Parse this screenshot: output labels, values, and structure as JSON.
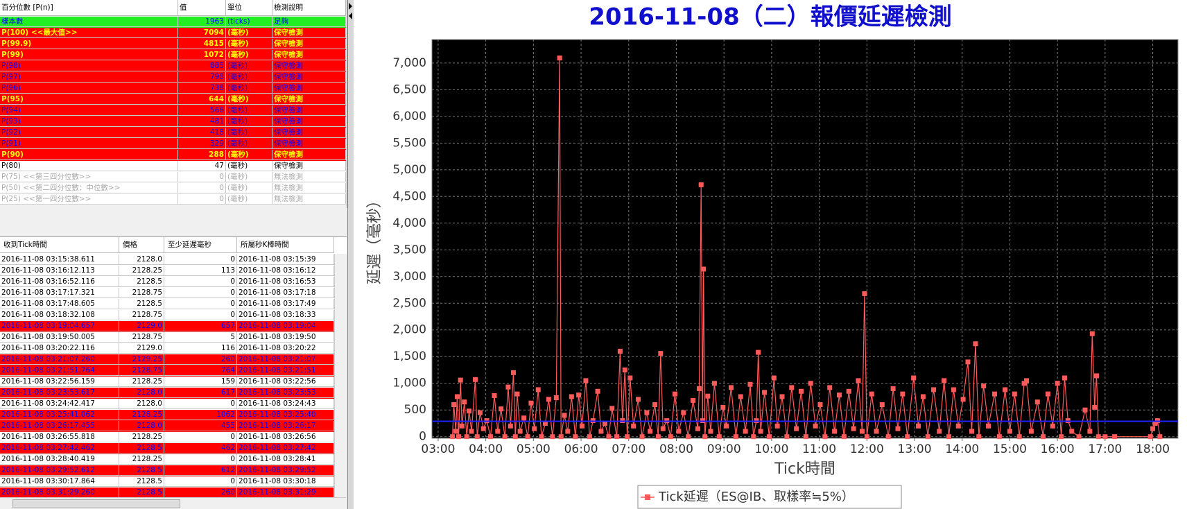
{
  "percentile_table": {
    "headers": [
      "百分位數 [P(n)]",
      "值",
      "單位",
      "檢測說明"
    ],
    "rows": [
      {
        "cells": [
          "樣本數",
          "1963",
          "(ticks)",
          "足夠"
        ],
        "bg": "#22ee22",
        "color": "#0000ff"
      },
      {
        "cells": [
          "P(100)  <<最大值>>",
          "7094",
          "(毫秒)",
          "保守檢測"
        ],
        "bg": "#ff0000",
        "color": "#ffff00"
      },
      {
        "cells": [
          "P(99.9)",
          "4815",
          "(毫秒)",
          "保守檢測"
        ],
        "bg": "#ff0000",
        "color": "#ffff00"
      },
      {
        "cells": [
          "P(99)",
          "1072",
          "(毫秒)",
          "保守檢測"
        ],
        "bg": "#ff0000",
        "color": "#ffff00"
      },
      {
        "cells": [
          "P(98)",
          "885",
          "(毫秒)",
          "保守檢測"
        ],
        "bg": "#ff0000",
        "color": "#0000ff"
      },
      {
        "cells": [
          "P(97)",
          "798",
          "(毫秒)",
          "保守檢測"
        ],
        "bg": "#ff0000",
        "color": "#0000ff"
      },
      {
        "cells": [
          "P(96)",
          "738",
          "(毫秒)",
          "保守檢測"
        ],
        "bg": "#ff0000",
        "color": "#0000ff"
      },
      {
        "cells": [
          "P(95)",
          "644",
          "(毫秒)",
          "保守檢測"
        ],
        "bg": "#ff0000",
        "color": "#ffff00"
      },
      {
        "cells": [
          "P(94)",
          "566",
          "(毫秒)",
          "保守檢測"
        ],
        "bg": "#ff0000",
        "color": "#0000ff"
      },
      {
        "cells": [
          "P(93)",
          "481",
          "(毫秒)",
          "保守檢測"
        ],
        "bg": "#ff0000",
        "color": "#0000ff"
      },
      {
        "cells": [
          "P(92)",
          "418",
          "(毫秒)",
          "保守檢測"
        ],
        "bg": "#ff0000",
        "color": "#0000ff"
      },
      {
        "cells": [
          "P(91)",
          "329",
          "(毫秒)",
          "保守檢測"
        ],
        "bg": "#ff0000",
        "color": "#0000ff"
      },
      {
        "cells": [
          "P(90)",
          "288",
          "(毫秒)",
          "保守檢測"
        ],
        "bg": "#ff0000",
        "color": "#ffff00"
      },
      {
        "cells": [
          "P(80)",
          "47",
          "(毫秒)",
          "保守檢測"
        ],
        "bg": "#ffffff",
        "color": "#000000"
      },
      {
        "cells": [
          "P(75)  <<第三四分位數>>",
          "0",
          "(毫秒)",
          "無法檢測"
        ],
        "bg": "#ffffff",
        "color": "#aaaaaa"
      },
      {
        "cells": [
          "P(50)  <<第二四分位數：中位數>>",
          "0",
          "(毫秒)",
          "無法檢測"
        ],
        "bg": "#ffffff",
        "color": "#aaaaaa"
      },
      {
        "cells": [
          "P(25)  <<第一四分位數>>",
          "0",
          "(毫秒)",
          "無法檢測"
        ],
        "bg": "#ffffff",
        "color": "#aaaaaa"
      }
    ]
  },
  "tick_table": {
    "headers": [
      "收到Tick時間",
      "價格",
      "至少延遲毫秒",
      "所屬秒K棒時間"
    ],
    "rows": [
      {
        "cells": [
          "2016-11-08 03:15:38.611",
          "2128.0",
          "0",
          "2016-11-08 03:15:39"
        ],
        "bg": "#ffffff"
      },
      {
        "cells": [
          "2016-11-08 03:16:12.113",
          "2128.25",
          "113",
          "2016-11-08 03:16:12"
        ],
        "bg": "#ffffff"
      },
      {
        "cells": [
          "2016-11-08 03:16:52.116",
          "2128.5",
          "0",
          "2016-11-08 03:16:53"
        ],
        "bg": "#ffffff"
      },
      {
        "cells": [
          "2016-11-08 03:17:17.321",
          "2128.75",
          "0",
          "2016-11-08 03:17:18"
        ],
        "bg": "#ffffff"
      },
      {
        "cells": [
          "2016-11-08 03:17:48.605",
          "2128.5",
          "0",
          "2016-11-08 03:17:49"
        ],
        "bg": "#ffffff"
      },
      {
        "cells": [
          "2016-11-08 03:18:32.108",
          "2128.75",
          "0",
          "2016-11-08 03:18:33"
        ],
        "bg": "#ffffff"
      },
      {
        "cells": [
          "2016-11-08 03:19:04.657",
          "2129.0",
          "657",
          "2016-11-08 03:19:04"
        ],
        "bg": "#ff0000"
      },
      {
        "cells": [
          "2016-11-08 03:19:50.005",
          "2128.75",
          "5",
          "2016-11-08 03:19:50"
        ],
        "bg": "#ffffff"
      },
      {
        "cells": [
          "2016-11-08 03:20:22.116",
          "2129.0",
          "116",
          "2016-11-08 03:20:22"
        ],
        "bg": "#ffffff"
      },
      {
        "cells": [
          "2016-11-08 03:21:07.260",
          "2129.25",
          "260",
          "2016-11-08 03:21:07"
        ],
        "bg": "#ff0000"
      },
      {
        "cells": [
          "2016-11-08 03:21:51.764",
          "2128.75",
          "764",
          "2016-11-08 03:21:51"
        ],
        "bg": "#ff0000"
      },
      {
        "cells": [
          "2016-11-08 03:22:56.159",
          "2128.25",
          "159",
          "2016-11-08 03:22:56"
        ],
        "bg": "#ffffff"
      },
      {
        "cells": [
          "2016-11-08 03:23:53.617",
          "2128.0",
          "617",
          "2016-11-08 03:23:53"
        ],
        "bg": "#ff0000"
      },
      {
        "cells": [
          "2016-11-08 03:24:42.417",
          "2128.0",
          "0",
          "2016-11-08 03:24:43"
        ],
        "bg": "#ffffff"
      },
      {
        "cells": [
          "2016-11-08 03:25:41.062",
          "2128.25",
          "1062",
          "2016-11-08 03:25:40"
        ],
        "bg": "#ff0000"
      },
      {
        "cells": [
          "2016-11-08 03:26:17.455",
          "2128.0",
          "455",
          "2016-11-08 03:26:17"
        ],
        "bg": "#ff0000"
      },
      {
        "cells": [
          "2016-11-08 03:26:55.818",
          "2128.25",
          "0",
          "2016-11-08 03:26:56"
        ],
        "bg": "#ffffff"
      },
      {
        "cells": [
          "2016-11-08 03:27:42.462",
          "2128.5",
          "462",
          "2016-11-08 03:27:42"
        ],
        "bg": "#ff0000"
      },
      {
        "cells": [
          "2016-11-08 03:28:40.419",
          "2128.25",
          "0",
          "2016-11-08 03:28:41"
        ],
        "bg": "#ffffff"
      },
      {
        "cells": [
          "2016-11-08 03:29:52.612",
          "2128.5",
          "612",
          "2016-11-08 03:29:52"
        ],
        "bg": "#ff0000"
      },
      {
        "cells": [
          "2016-11-08 03:30:17.864",
          "2128.5",
          "0",
          "2016-11-08 03:30:18"
        ],
        "bg": "#ffffff"
      },
      {
        "cells": [
          "2016-11-08 03:31:29.260",
          "2128.5",
          "260",
          "2016-11-08 03:31:29"
        ],
        "bg": "#ff0000"
      }
    ]
  },
  "chart_data": {
    "type": "line",
    "title": "2016-11-08（二）報價延遲檢測",
    "ylabel": "延遲（毫秒）",
    "xlabel": "Tick時間",
    "xlim": [
      2.87,
      18.53
    ],
    "ylim": [
      -30,
      7440
    ],
    "grid": true,
    "background": "#000000",
    "reference_line": {
      "value": 288,
      "color": "#2020ff"
    },
    "xticks": [
      {
        "value": 3,
        "label": "03:00"
      },
      {
        "value": 4,
        "label": "04:00"
      },
      {
        "value": 5,
        "label": "05:00"
      },
      {
        "value": 6,
        "label": "06:00"
      },
      {
        "value": 7,
        "label": "07:00"
      },
      {
        "value": 8,
        "label": "08:00"
      },
      {
        "value": 9,
        "label": "09:00"
      },
      {
        "value": 10,
        "label": "10:00"
      },
      {
        "value": 11,
        "label": "11:00"
      },
      {
        "value": 12,
        "label": "12:00"
      },
      {
        "value": 13,
        "label": "13:00"
      },
      {
        "value": 14,
        "label": "14:00"
      },
      {
        "value": 15,
        "label": "15:00"
      },
      {
        "value": 16,
        "label": "16:00"
      },
      {
        "value": 17,
        "label": "17:00"
      },
      {
        "value": 18,
        "label": "18:00"
      }
    ],
    "yticks": [
      0,
      500,
      {
        "value": 1000,
        "label": "1,000"
      },
      {
        "value": 1500,
        "label": "1,500"
      },
      {
        "value": 2000,
        "label": "2,000"
      },
      {
        "value": 2500,
        "label": "2,500"
      },
      {
        "value": 3000,
        "label": "3,000"
      },
      {
        "value": 3500,
        "label": "3,500"
      },
      {
        "value": 4000,
        "label": "4,000"
      },
      {
        "value": 4500,
        "label": "4,500"
      },
      {
        "value": 5000,
        "label": "5,000"
      },
      {
        "value": 5500,
        "label": "5,500"
      },
      {
        "value": 6000,
        "label": "6,000"
      },
      {
        "value": 6500,
        "label": "6,500"
      },
      {
        "value": 7000,
        "label": "7,000"
      }
    ],
    "x": [
      3.3,
      3.33,
      3.37,
      3.4,
      3.43,
      3.47,
      3.5,
      3.55,
      3.6,
      3.65,
      3.7,
      3.78,
      3.82,
      3.88,
      3.95,
      4.02,
      4.1,
      4.18,
      4.25,
      4.32,
      4.4,
      4.47,
      4.52,
      4.58,
      4.62,
      4.66,
      4.72,
      4.8,
      4.88,
      4.95,
      5.02,
      5.1,
      5.17,
      5.25,
      5.32,
      5.4,
      5.48,
      5.55,
      5.58,
      5.65,
      5.72,
      5.8,
      5.88,
      5.95,
      6.02,
      6.1,
      6.18,
      6.25,
      6.35,
      6.42,
      6.5,
      6.58,
      6.65,
      6.75,
      6.82,
      6.87,
      6.92,
      6.97,
      7.03,
      7.1,
      7.2,
      7.28,
      7.38,
      7.45,
      7.55,
      7.62,
      7.67,
      7.72,
      7.8,
      7.88,
      7.97,
      8.05,
      8.15,
      8.25,
      8.35,
      8.45,
      8.48,
      8.52,
      8.55,
      8.57,
      8.6,
      8.66,
      8.72,
      8.8,
      8.9,
      8.98,
      9.05,
      9.15,
      9.25,
      9.35,
      9.45,
      9.55,
      9.62,
      9.68,
      9.72,
      9.77,
      9.85,
      9.95,
      10.05,
      10.12,
      10.22,
      10.32,
      10.42,
      10.52,
      10.62,
      10.72,
      10.82,
      10.92,
      11.02,
      11.12,
      11.22,
      11.32,
      11.42,
      11.52,
      11.62,
      11.72,
      11.82,
      11.9,
      11.95,
      12.0,
      12.1,
      12.2,
      12.32,
      12.45,
      12.55,
      12.65,
      12.75,
      12.85,
      12.98,
      13.08,
      13.18,
      13.28,
      13.4,
      13.52,
      13.62,
      13.72,
      13.82,
      13.92,
      14.02,
      14.12,
      14.2,
      14.28,
      14.35,
      14.45,
      14.55,
      14.68,
      14.78,
      14.9,
      15.0,
      15.1,
      15.2,
      15.3,
      15.35,
      15.45,
      15.58,
      15.7,
      15.8,
      15.9,
      16.0,
      16.08,
      16.15,
      16.22,
      16.3,
      16.45,
      16.58,
      16.68,
      16.73,
      16.78,
      16.82,
      16.86,
      17.0,
      17.2,
      17.95,
      18.0,
      18.05,
      18.1,
      18.15
    ],
    "series": [
      {
        "name": "Tick延遲（ES@IB、取樣率≒5%）",
        "color": "#ff5a5a",
        "values": [
          0,
          600,
          100,
          750,
          0,
          1060,
          200,
          650,
          0,
          480,
          100,
          1070,
          0,
          450,
          150,
          300,
          0,
          770,
          100,
          520,
          0,
          930,
          200,
          1200,
          0,
          800,
          100,
          350,
          0,
          630,
          150,
          880,
          0,
          250,
          700,
          0,
          730,
          7094,
          0,
          400,
          100,
          750,
          0,
          780,
          200,
          1050,
          0,
          300,
          850,
          100,
          250,
          0,
          530,
          0,
          1600,
          300,
          1250,
          0,
          1100,
          200,
          700,
          0,
          450,
          100,
          600,
          0,
          1560,
          150,
          300,
          0,
          800,
          100,
          450,
          0,
          680,
          150,
          900,
          4720,
          300,
          3140,
          0,
          760,
          100,
          1000,
          0,
          550,
          200,
          920,
          0,
          750,
          100,
          980,
          0,
          300,
          1580,
          100,
          830,
          0,
          1100,
          200,
          750,
          0,
          920,
          150,
          850,
          0,
          1000,
          200,
          600,
          0,
          920,
          100,
          780,
          0,
          850,
          150,
          1050,
          100,
          2680,
          0,
          800,
          100,
          600,
          0,
          900,
          150,
          800,
          0,
          1100,
          200,
          750,
          0,
          880,
          100,
          1050,
          0,
          880,
          200,
          700,
          1400,
          100,
          1740,
          0,
          950,
          200,
          800,
          0,
          880,
          100,
          800,
          0,
          1000,
          1050,
          100,
          650,
          0,
          800,
          200,
          1000,
          0,
          1100,
          300,
          100,
          0,
          500,
          100,
          1930,
          550,
          1140,
          0,
          0,
          0,
          0,
          150,
          250,
          300,
          0
        ]
      }
    ]
  }
}
